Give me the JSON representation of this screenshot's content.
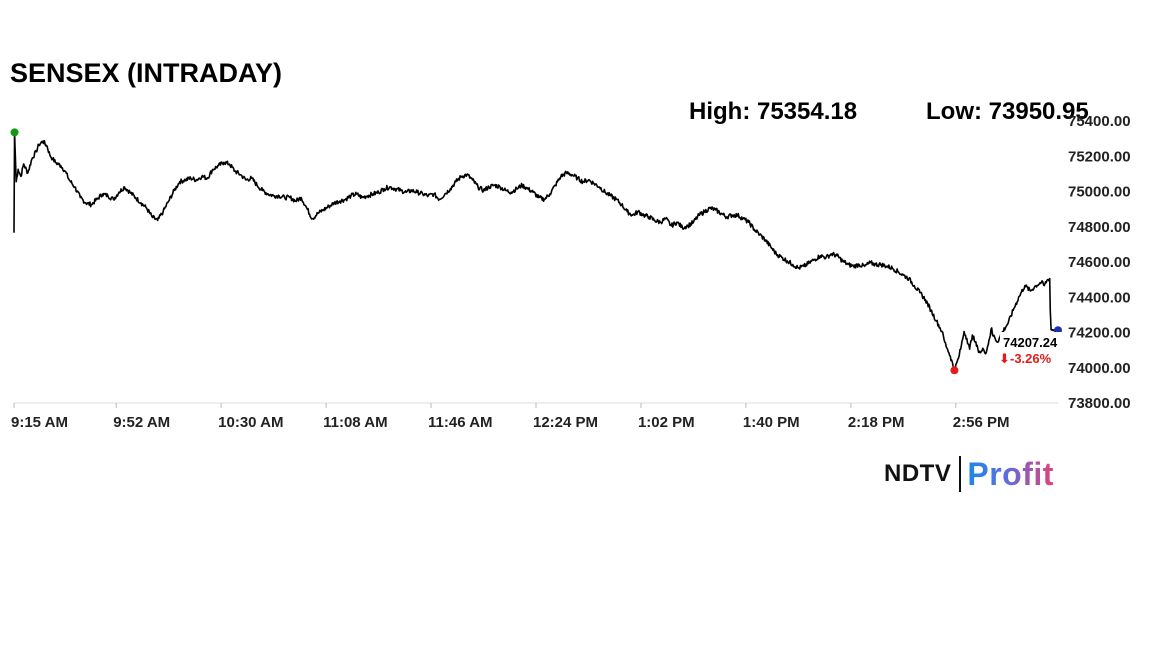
{
  "header": {
    "title": "SENSEX (INTRADAY)",
    "high_text": "High: 75354.18",
    "low_text": "Low: 73950.95"
  },
  "brand": {
    "left": "NDTV",
    "right": "Profit"
  },
  "chart_data": {
    "type": "line",
    "title": "SENSEX (INTRADAY)",
    "xlabel": "",
    "ylabel": "",
    "ylim": [
      73800,
      75400
    ],
    "y_ticks": [
      "75400.00",
      "75200.00",
      "75000.00",
      "74800.00",
      "74600.00",
      "74400.00",
      "74200.00",
      "74000.00",
      "73800.00"
    ],
    "x_ticks": [
      "9:15 AM",
      "9:52 AM",
      "10:30 AM",
      "11:08 AM",
      "11:46 AM",
      "12:24 PM",
      "1:02 PM",
      "1:40 PM",
      "2:18 PM",
      "2:56 PM"
    ],
    "x_tick_minutes": [
      0,
      37,
      75,
      113,
      151,
      189,
      227,
      265,
      303,
      341
    ],
    "x_range_minutes": [
      0,
      378
    ],
    "series": [
      {
        "points": [
          [
            0,
            74760
          ],
          [
            0.2,
            75330
          ],
          [
            0.8,
            75050
          ],
          [
            1.5,
            75120
          ],
          [
            2.5,
            75080
          ],
          [
            3.5,
            75150
          ],
          [
            5,
            75100
          ],
          [
            6.5,
            75180
          ],
          [
            8,
            75220
          ],
          [
            9,
            75260
          ],
          [
            10.5,
            75280
          ],
          [
            12,
            75250
          ],
          [
            13,
            75200
          ],
          [
            14,
            75180
          ],
          [
            15,
            75160
          ],
          [
            17,
            75140
          ],
          [
            18.5,
            75110
          ],
          [
            20,
            75060
          ],
          [
            22,
            75020
          ],
          [
            24,
            74960
          ],
          [
            26,
            74930
          ],
          [
            28,
            74920
          ],
          [
            30,
            74950
          ],
          [
            32,
            74980
          ],
          [
            34,
            74970
          ],
          [
            36,
            74950
          ],
          [
            38,
            74990
          ],
          [
            40,
            75020
          ],
          [
            42,
            74990
          ],
          [
            44,
            74960
          ],
          [
            46,
            74930
          ],
          [
            48,
            74900
          ],
          [
            50,
            74850
          ],
          [
            52,
            74830
          ],
          [
            54,
            74880
          ],
          [
            56,
            74940
          ],
          [
            58,
            75000
          ],
          [
            60,
            75050
          ],
          [
            62,
            75060
          ],
          [
            64,
            75070
          ],
          [
            66,
            75060
          ],
          [
            68,
            75080
          ],
          [
            70,
            75070
          ],
          [
            72,
            75120
          ],
          [
            74,
            75140
          ],
          [
            76,
            75160
          ],
          [
            78,
            75150
          ],
          [
            80,
            75110
          ],
          [
            82,
            75090
          ],
          [
            84,
            75060
          ],
          [
            86,
            75070
          ],
          [
            88,
            75030
          ],
          [
            90,
            75000
          ],
          [
            92,
            74980
          ],
          [
            94,
            74970
          ],
          [
            96,
            74970
          ],
          [
            98,
            74960
          ],
          [
            100,
            74960
          ],
          [
            102,
            74940
          ],
          [
            104,
            74960
          ],
          [
            106,
            74900
          ],
          [
            108,
            74840
          ],
          [
            110,
            74870
          ],
          [
            112,
            74890
          ],
          [
            114,
            74910
          ],
          [
            116,
            74930
          ],
          [
            118,
            74940
          ],
          [
            120,
            74950
          ],
          [
            122,
            74970
          ],
          [
            124,
            74980
          ],
          [
            126,
            74960
          ],
          [
            128,
            74970
          ],
          [
            130,
            74980
          ],
          [
            132,
            74990
          ],
          [
            134,
            75010
          ],
          [
            136,
            75020
          ],
          [
            138,
            75010
          ],
          [
            140,
            75000
          ],
          [
            142,
            74990
          ],
          [
            144,
            75000
          ],
          [
            146,
            74990
          ],
          [
            148,
            74980
          ],
          [
            150,
            74970
          ],
          [
            152,
            74980
          ],
          [
            154,
            74950
          ],
          [
            156,
            74980
          ],
          [
            158,
            75010
          ],
          [
            160,
            75050
          ],
          [
            162,
            75080
          ],
          [
            164,
            75090
          ],
          [
            166,
            75060
          ],
          [
            168,
            75020
          ],
          [
            170,
            75000
          ],
          [
            172,
            75020
          ],
          [
            174,
            75030
          ],
          [
            176,
            75020
          ],
          [
            178,
            75000
          ],
          [
            180,
            74990
          ],
          [
            182,
            75010
          ],
          [
            184,
            75030
          ],
          [
            186,
            75010
          ],
          [
            188,
            74990
          ],
          [
            190,
            74960
          ],
          [
            192,
            74950
          ],
          [
            194,
            74980
          ],
          [
            196,
            75030
          ],
          [
            198,
            75080
          ],
          [
            200,
            75100
          ],
          [
            202,
            75090
          ],
          [
            204,
            75070
          ],
          [
            206,
            75050
          ],
          [
            208,
            75060
          ],
          [
            210,
            75040
          ],
          [
            212,
            75020
          ],
          [
            214,
            74990
          ],
          [
            216,
            74970
          ],
          [
            218,
            74950
          ],
          [
            220,
            74920
          ],
          [
            222,
            74880
          ],
          [
            224,
            74860
          ],
          [
            226,
            74880
          ],
          [
            228,
            74860
          ],
          [
            230,
            74850
          ],
          [
            232,
            74830
          ],
          [
            234,
            74820
          ],
          [
            236,
            74840
          ],
          [
            238,
            74800
          ],
          [
            240,
            74820
          ],
          [
            242,
            74790
          ],
          [
            244,
            74800
          ],
          [
            246,
            74820
          ],
          [
            248,
            74860
          ],
          [
            250,
            74880
          ],
          [
            252,
            74900
          ],
          [
            254,
            74890
          ],
          [
            256,
            74870
          ],
          [
            258,
            74850
          ],
          [
            260,
            74860
          ],
          [
            262,
            74860
          ],
          [
            264,
            74840
          ],
          [
            266,
            74820
          ],
          [
            268,
            74780
          ],
          [
            270,
            74750
          ],
          [
            272,
            74720
          ],
          [
            274,
            74680
          ],
          [
            276,
            74640
          ],
          [
            278,
            74620
          ],
          [
            280,
            74600
          ],
          [
            282,
            74580
          ],
          [
            284,
            74560
          ],
          [
            286,
            74570
          ],
          [
            288,
            74590
          ],
          [
            290,
            74610
          ],
          [
            292,
            74630
          ],
          [
            294,
            74620
          ],
          [
            296,
            74640
          ],
          [
            298,
            74630
          ],
          [
            300,
            74600
          ],
          [
            302,
            74580
          ],
          [
            304,
            74570
          ],
          [
            306,
            74580
          ],
          [
            308,
            74570
          ],
          [
            310,
            74590
          ],
          [
            312,
            74580
          ],
          [
            314,
            74580
          ],
          [
            316,
            74570
          ],
          [
            318,
            74560
          ],
          [
            320,
            74540
          ],
          [
            322,
            74520
          ],
          [
            324,
            74500
          ],
          [
            326,
            74460
          ],
          [
            328,
            74420
          ],
          [
            330,
            74380
          ],
          [
            332,
            74320
          ],
          [
            334,
            74260
          ],
          [
            336,
            74200
          ],
          [
            337,
            74140
          ],
          [
            338,
            74100
          ],
          [
            339,
            74060
          ],
          [
            340.5,
            73980
          ],
          [
            342,
            74050
          ],
          [
            343,
            74120
          ],
          [
            344,
            74200
          ],
          [
            345,
            74160
          ],
          [
            346,
            74100
          ],
          [
            347,
            74180
          ],
          [
            348,
            74140
          ],
          [
            349,
            74100
          ],
          [
            350,
            74080
          ],
          [
            351,
            74100
          ],
          [
            352,
            74080
          ],
          [
            353,
            74150
          ],
          [
            354,
            74220
          ],
          [
            354.3,
            74180
          ],
          [
            355,
            74170
          ],
          [
            356,
            74140
          ],
          [
            357,
            74170
          ],
          [
            358,
            74200
          ],
          [
            360,
            74250
          ],
          [
            362,
            74330
          ],
          [
            364,
            74400
          ],
          [
            366,
            74460
          ],
          [
            368,
            74430
          ],
          [
            370,
            74460
          ],
          [
            372,
            74480
          ],
          [
            373,
            74460
          ],
          [
            374,
            74490
          ],
          [
            375,
            74500
          ],
          [
            375.2,
            74320
          ],
          [
            375.5,
            74210
          ],
          [
            378,
            74207.24
          ]
        ]
      }
    ],
    "open_marker": [
      0.2,
      75330
    ],
    "low_marker": [
      340.5,
      73980
    ],
    "last_marker": [
      378,
      74207.24
    ],
    "last_value": "74207.24",
    "change_text": "-3.26%",
    "colors": {
      "line": "#000000",
      "open": "#119a11",
      "low": "#e21b1b",
      "last": "#1a2fb5",
      "change": "#e21b1b",
      "grid": "#dddddd"
    },
    "grid": false,
    "legend": "none"
  }
}
